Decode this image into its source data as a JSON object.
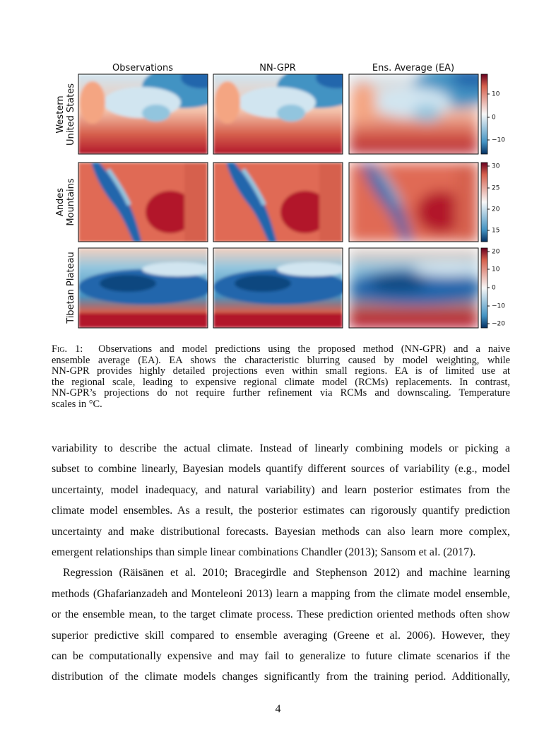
{
  "figure": {
    "column_titles": [
      "Observations",
      "NN-GPR",
      "Ens. Average (EA)"
    ],
    "row_labels": [
      [
        "Western",
        "United States"
      ],
      [
        "Andes",
        "Mountains"
      ],
      [
        "Tibetan Plateau"
      ]
    ],
    "colorbars": [
      [
        "10",
        "0",
        "−10"
      ],
      [
        "30",
        "25",
        "20",
        "15"
      ],
      [
        "20",
        "10",
        "0",
        "−10",
        "−20"
      ]
    ],
    "caption": {
      "label": "Fig. 1:",
      "lines": [
        "Observations and model predictions using the proposed method (NN-GPR) and a naive",
        "ensemble average (EA). EA shows the characteristic blurring caused by model weighting, while",
        "NN-GPR provides highly detailed projections even within small regions. EA is of limited use at",
        "the regional scale, leading to expensive regional climate model (RCMs) replacements. In contrast,",
        "NN-GPR’s projections do not require further refinement via RCMs and downscaling. Temperature",
        "scales in °C."
      ]
    }
  },
  "body": {
    "paragraphs": [
      [
        "variability to describe the actual climate. Instead of linearly combining models or picking a",
        "subset to combine linearly, Bayesian models quantify different sources of variability (e.g., model",
        "uncertainty, model inadequacy, and natural variability) and learn posterior estimates from the",
        "climate model ensembles. As a result, the posterior estimates can rigorously quantify prediction",
        "uncertainty and make distributional forecasts. Bayesian methods can also learn more complex,",
        "emergent relationships than simple linear combinations Chandler (2013); Sansom et al. (2017)."
      ],
      [
        "Regression (Räisänen et al. 2010; Bracegirdle and Stephenson 2012) and machine learning",
        "methods (Ghafarianzadeh and Monteleoni 2013) learn a mapping from the climate model ensemble,",
        "or the ensemble mean, to the target climate process. These prediction oriented methods often show",
        "superior predictive skill compared to ensemble averaging (Greene et al. 2006). However, they",
        "can be computationally expensive and may fail to generalize to future climate scenarios if the",
        "distribution of the climate models changes significantly from the training period. Additionally,"
      ]
    ]
  },
  "page_number": "4"
}
